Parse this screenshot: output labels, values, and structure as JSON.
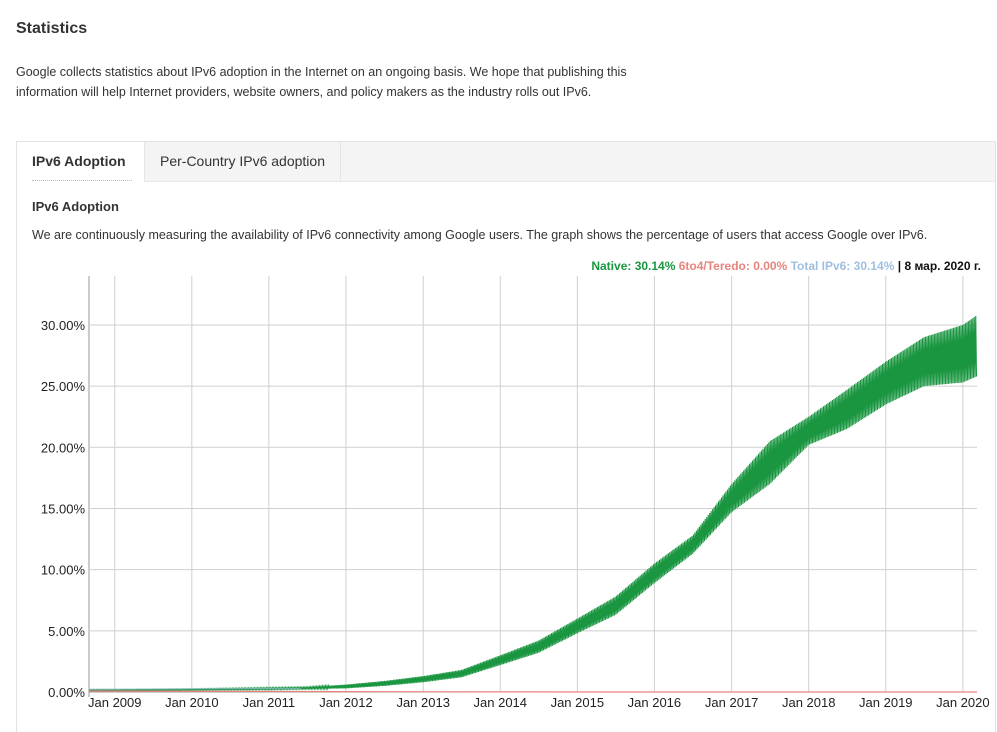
{
  "page": {
    "title": "Statistics",
    "intro": "Google collects statistics about IPv6 adoption in the Internet on an ongoing basis. We hope that publishing this information will help Internet providers, website owners, and policy makers as the industry rolls out IPv6."
  },
  "tabs": [
    {
      "label": "IPv6 Adoption",
      "active": true
    },
    {
      "label": "Per-Country IPv6 adoption",
      "active": false
    }
  ],
  "section": {
    "title": "IPv6 Adoption",
    "description": "We are continuously measuring the availability of IPv6 connectivity among Google users. The graph shows the percentage of users that access Google over IPv6."
  },
  "legend": {
    "native": "Native: 30.14%",
    "teredo": "6to4/Teredo: 0.00%",
    "total": "Total IPv6: 30.14%",
    "separator": "|",
    "date": "8 мар. 2020 г."
  },
  "colors": {
    "native": "#1a9641",
    "teredo": "#e8837e",
    "total": "#9fbfe0"
  },
  "chart_data": {
    "type": "line",
    "title": "",
    "xlabel": "",
    "ylabel": "",
    "x_ticks": [
      "Jan 2009",
      "Jan 2010",
      "Jan 2011",
      "Jan 2012",
      "Jan 2013",
      "Jan 2014",
      "Jan 2015",
      "Jan 2016",
      "Jan 2017",
      "Jan 2018",
      "Jan 2019",
      "Jan 2020"
    ],
    "y_ticks": [
      "0.00%",
      "5.00%",
      "10.00%",
      "15.00%",
      "20.00%",
      "25.00%",
      "30.00%"
    ],
    "xlim": [
      "2008-09-01",
      "2020-03-08"
    ],
    "ylim": [
      0,
      34
    ],
    "grid": true,
    "series": [
      {
        "name": "Native",
        "color": "#1a9641",
        "x": [
          "2008-09-01",
          "2009-01-01",
          "2010-01-01",
          "2011-01-01",
          "2011-07-01",
          "2012-01-01",
          "2012-07-01",
          "2013-01-01",
          "2013-07-01",
          "2014-01-01",
          "2014-07-01",
          "2015-01-01",
          "2015-07-01",
          "2016-01-01",
          "2016-07-01",
          "2017-01-01",
          "2017-07-01",
          "2018-01-01",
          "2018-07-01",
          "2019-01-01",
          "2019-07-01",
          "2020-01-01",
          "2020-03-08"
        ],
        "low": [
          0.1,
          0.1,
          0.15,
          0.2,
          0.25,
          0.3,
          0.5,
          0.8,
          1.2,
          2.2,
          3.2,
          4.8,
          6.3,
          8.9,
          11.3,
          14.7,
          17.0,
          20.2,
          21.5,
          23.5,
          25.0,
          25.3,
          25.8
        ],
        "high": [
          0.2,
          0.2,
          0.25,
          0.35,
          0.4,
          0.6,
          0.9,
          1.3,
          1.8,
          3.0,
          4.2,
          6.0,
          7.8,
          10.5,
          12.8,
          17.0,
          20.5,
          22.5,
          24.7,
          27.0,
          29.0,
          30.0,
          30.8
        ]
      },
      {
        "name": "6to4/Teredo",
        "color": "#e8837e",
        "x": [
          "2008-09-01",
          "2010-01-01",
          "2012-01-01",
          "2014-01-01",
          "2016-01-01",
          "2018-01-01",
          "2020-03-08"
        ],
        "values": [
          0.08,
          0.06,
          0.03,
          0.01,
          0.0,
          0.0,
          0.0
        ]
      }
    ]
  }
}
